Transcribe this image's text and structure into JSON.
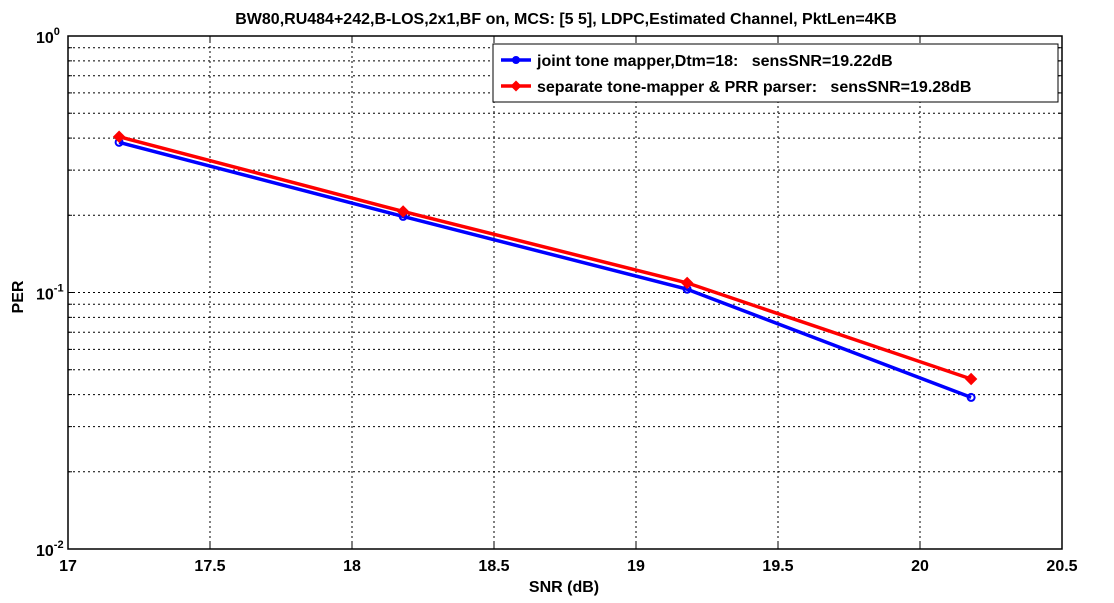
{
  "chart_data": {
    "type": "line",
    "title": "BW80,RU484+242,B-LOS,2x1,BF on, MCS: [5  5], LDPC,Estimated Channel, PktLen=4KB",
    "xlabel": "SNR (dB)",
    "ylabel": "PER",
    "xlim": [
      17,
      20.5
    ],
    "ylim": [
      0.01,
      1
    ],
    "yscale": "log",
    "grid": true,
    "legend_position": "top-right",
    "x_ticks": [
      17,
      17.5,
      18,
      18.5,
      19,
      19.5,
      20,
      20.5
    ],
    "x_tick_labels": [
      "17",
      "17.5",
      "18",
      "18.5",
      "19",
      "19.5",
      "20",
      "20.5"
    ],
    "y_ticks": [
      {
        "value": 0.01,
        "base": "10",
        "exp": "-2"
      },
      {
        "value": 0.1,
        "base": "10",
        "exp": "-1"
      },
      {
        "value": 1,
        "base": "10",
        "exp": "0"
      }
    ],
    "series": [
      {
        "name": "joint tone mapper,Dtm=18:   sensSNR=19.22dB",
        "color": "#0000ff",
        "marker": "circle",
        "x": [
          17.18,
          18.18,
          19.18,
          20.18
        ],
        "y": [
          0.385,
          0.198,
          0.103,
          0.039
        ]
      },
      {
        "name": "separate tone-mapper & PRR parser:   sensSNR=19.28dB",
        "color": "#ff0000",
        "marker": "diamond",
        "x": [
          17.18,
          18.18,
          19.18,
          20.18
        ],
        "y": [
          0.405,
          0.207,
          0.109,
          0.046
        ]
      }
    ]
  }
}
